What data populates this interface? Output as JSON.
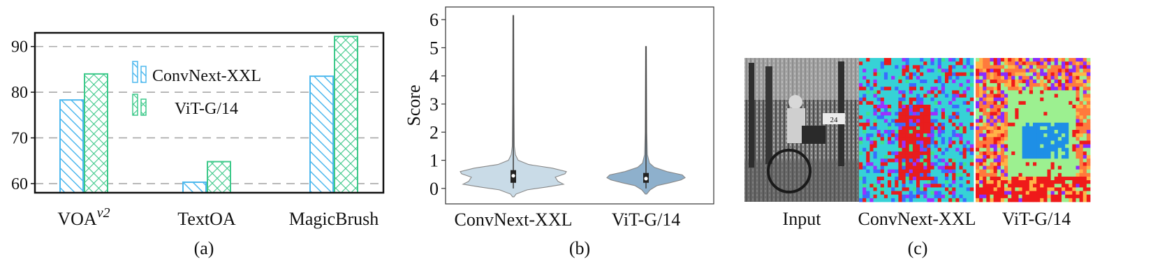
{
  "chart_data": [
    {
      "type": "bar",
      "caption": "(a)",
      "categories": [
        "VOA",
        "TextOA",
        "MagicBrush"
      ],
      "category_superscripts": [
        "v2",
        "",
        ""
      ],
      "series": [
        {
          "name": "ConvNext-XXL",
          "color": "#4db8ee",
          "pattern": "diagonal-hatch",
          "values": [
            78.3,
            60.3,
            83.5
          ]
        },
        {
          "name": "ViT-G/14",
          "color": "#3dc98a",
          "pattern": "crosshatch",
          "values": [
            84.0,
            64.8,
            92.2
          ]
        }
      ],
      "yticks": [
        60,
        70,
        80,
        90
      ],
      "ylim": [
        58,
        93
      ],
      "grid": "dashed horizontal",
      "legend_position": "top-left-center"
    },
    {
      "type": "violin",
      "caption": "(b)",
      "ylabel": "Score",
      "categories": [
        "ConvNext-XXL",
        "ViT-G/14"
      ],
      "yticks": [
        0,
        1,
        2,
        3,
        4,
        5,
        6
      ],
      "ylim": [
        -0.55,
        6.45
      ],
      "series": [
        {
          "name": "ConvNext-XXL",
          "color": "#c9dbe7",
          "min": 0.0,
          "max": 6.15,
          "q1": 0.2,
          "median": 0.45,
          "q3": 0.65
        },
        {
          "name": "ViT-G/14",
          "color": "#8eb0cc",
          "min": 0.0,
          "max": 5.05,
          "q1": 0.2,
          "median": 0.35,
          "q3": 0.55
        }
      ]
    }
  ],
  "panel_c": {
    "caption": "(c)",
    "labels": [
      "Input",
      "ConvNext-XXL",
      "ViT-G/14"
    ],
    "photo_text": "24"
  }
}
